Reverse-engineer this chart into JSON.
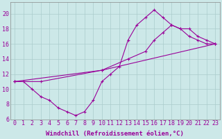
{
  "background_color": "#cce8e8",
  "grid_color": "#aacccc",
  "line_color": "#990099",
  "marker_color": "#990099",
  "xlabel": "Windchill (Refroidissement éolien,°C)",
  "xlim": [
    -0.5,
    23.5
  ],
  "ylim": [
    6,
    21.5
  ],
  "xticks": [
    0,
    1,
    2,
    3,
    4,
    5,
    6,
    7,
    8,
    9,
    10,
    11,
    12,
    13,
    14,
    15,
    16,
    17,
    18,
    19,
    20,
    21,
    22,
    23
  ],
  "yticks": [
    6,
    8,
    10,
    12,
    14,
    16,
    18,
    20
  ],
  "line1_x": [
    0,
    1,
    2,
    3,
    4,
    5,
    6,
    7,
    8,
    9,
    10,
    11,
    12,
    13,
    14,
    15,
    16,
    17,
    18,
    19,
    20,
    21,
    22,
    23
  ],
  "line1_y": [
    11.0,
    11.0,
    10.0,
    9.0,
    8.5,
    7.5,
    7.0,
    6.5,
    7.0,
    8.5,
    11.0,
    12.0,
    13.0,
    16.5,
    18.5,
    19.5,
    20.5,
    19.5,
    18.5,
    18.0,
    17.0,
    16.5,
    16.0,
    16.0
  ],
  "line2_x": [
    0,
    3,
    10,
    13,
    15,
    16,
    17,
    18,
    19,
    20,
    21,
    22,
    23
  ],
  "line2_y": [
    11.0,
    11.0,
    12.5,
    14.0,
    15.0,
    16.5,
    17.5,
    18.5,
    18.0,
    18.0,
    17.0,
    16.5,
    16.0
  ],
  "line3_x": [
    0,
    10,
    23
  ],
  "line3_y": [
    11.0,
    12.5,
    16.0
  ],
  "font_size_label": 6.5,
  "font_size_tick": 6.0
}
